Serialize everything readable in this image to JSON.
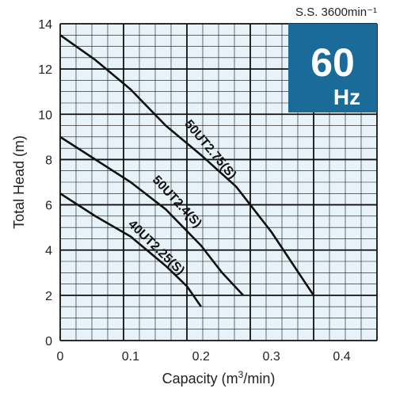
{
  "chart_data": {
    "type": "line",
    "xlabel": "Capacity (m³/min)",
    "ylabel": "Total Head (m)",
    "xlim": [
      0,
      0.45
    ],
    "ylim": [
      0,
      14
    ],
    "x_ticks": [
      0,
      0.1,
      0.2,
      0.3,
      0.4
    ],
    "y_ticks": [
      0,
      2,
      4,
      6,
      8,
      10,
      12,
      14
    ],
    "x_tick_labels": [
      "0",
      "0.1",
      "0.2",
      "0.3",
      "0.4"
    ],
    "y_tick_labels": [
      "0",
      "2",
      "4",
      "6",
      "8",
      "10",
      "12",
      "14"
    ],
    "grid": true,
    "series": [
      {
        "name": "50UT2.75(S)",
        "points": [
          [
            0,
            13.5
          ],
          [
            0.05,
            12.4
          ],
          [
            0.1,
            11.1
          ],
          [
            0.15,
            9.5
          ],
          [
            0.2,
            8.2
          ],
          [
            0.25,
            6.8
          ],
          [
            0.3,
            4.8
          ],
          [
            0.33,
            3.4
          ],
          [
            0.36,
            2.0
          ]
        ]
      },
      {
        "name": "50UT2.4(S)",
        "points": [
          [
            0,
            9.0
          ],
          [
            0.05,
            8.0
          ],
          [
            0.1,
            7.0
          ],
          [
            0.15,
            5.8
          ],
          [
            0.2,
            4.2
          ],
          [
            0.23,
            3.0
          ],
          [
            0.26,
            2.0
          ]
        ]
      },
      {
        "name": "40UT2.25(S)",
        "points": [
          [
            0,
            6.5
          ],
          [
            0.05,
            5.5
          ],
          [
            0.1,
            4.6
          ],
          [
            0.15,
            3.3
          ],
          [
            0.18,
            2.4
          ],
          [
            0.2,
            1.5
          ]
        ]
      }
    ],
    "speed_label": "S.S. 3600min⁻¹",
    "badge": {
      "number": "60",
      "unit": "Hz",
      "color": "#1a6a9a"
    },
    "colors": {
      "plot_background": "#e8f3f9",
      "grid_major": "#111111",
      "grid_minor": "#111111",
      "curve": "#111111"
    }
  }
}
